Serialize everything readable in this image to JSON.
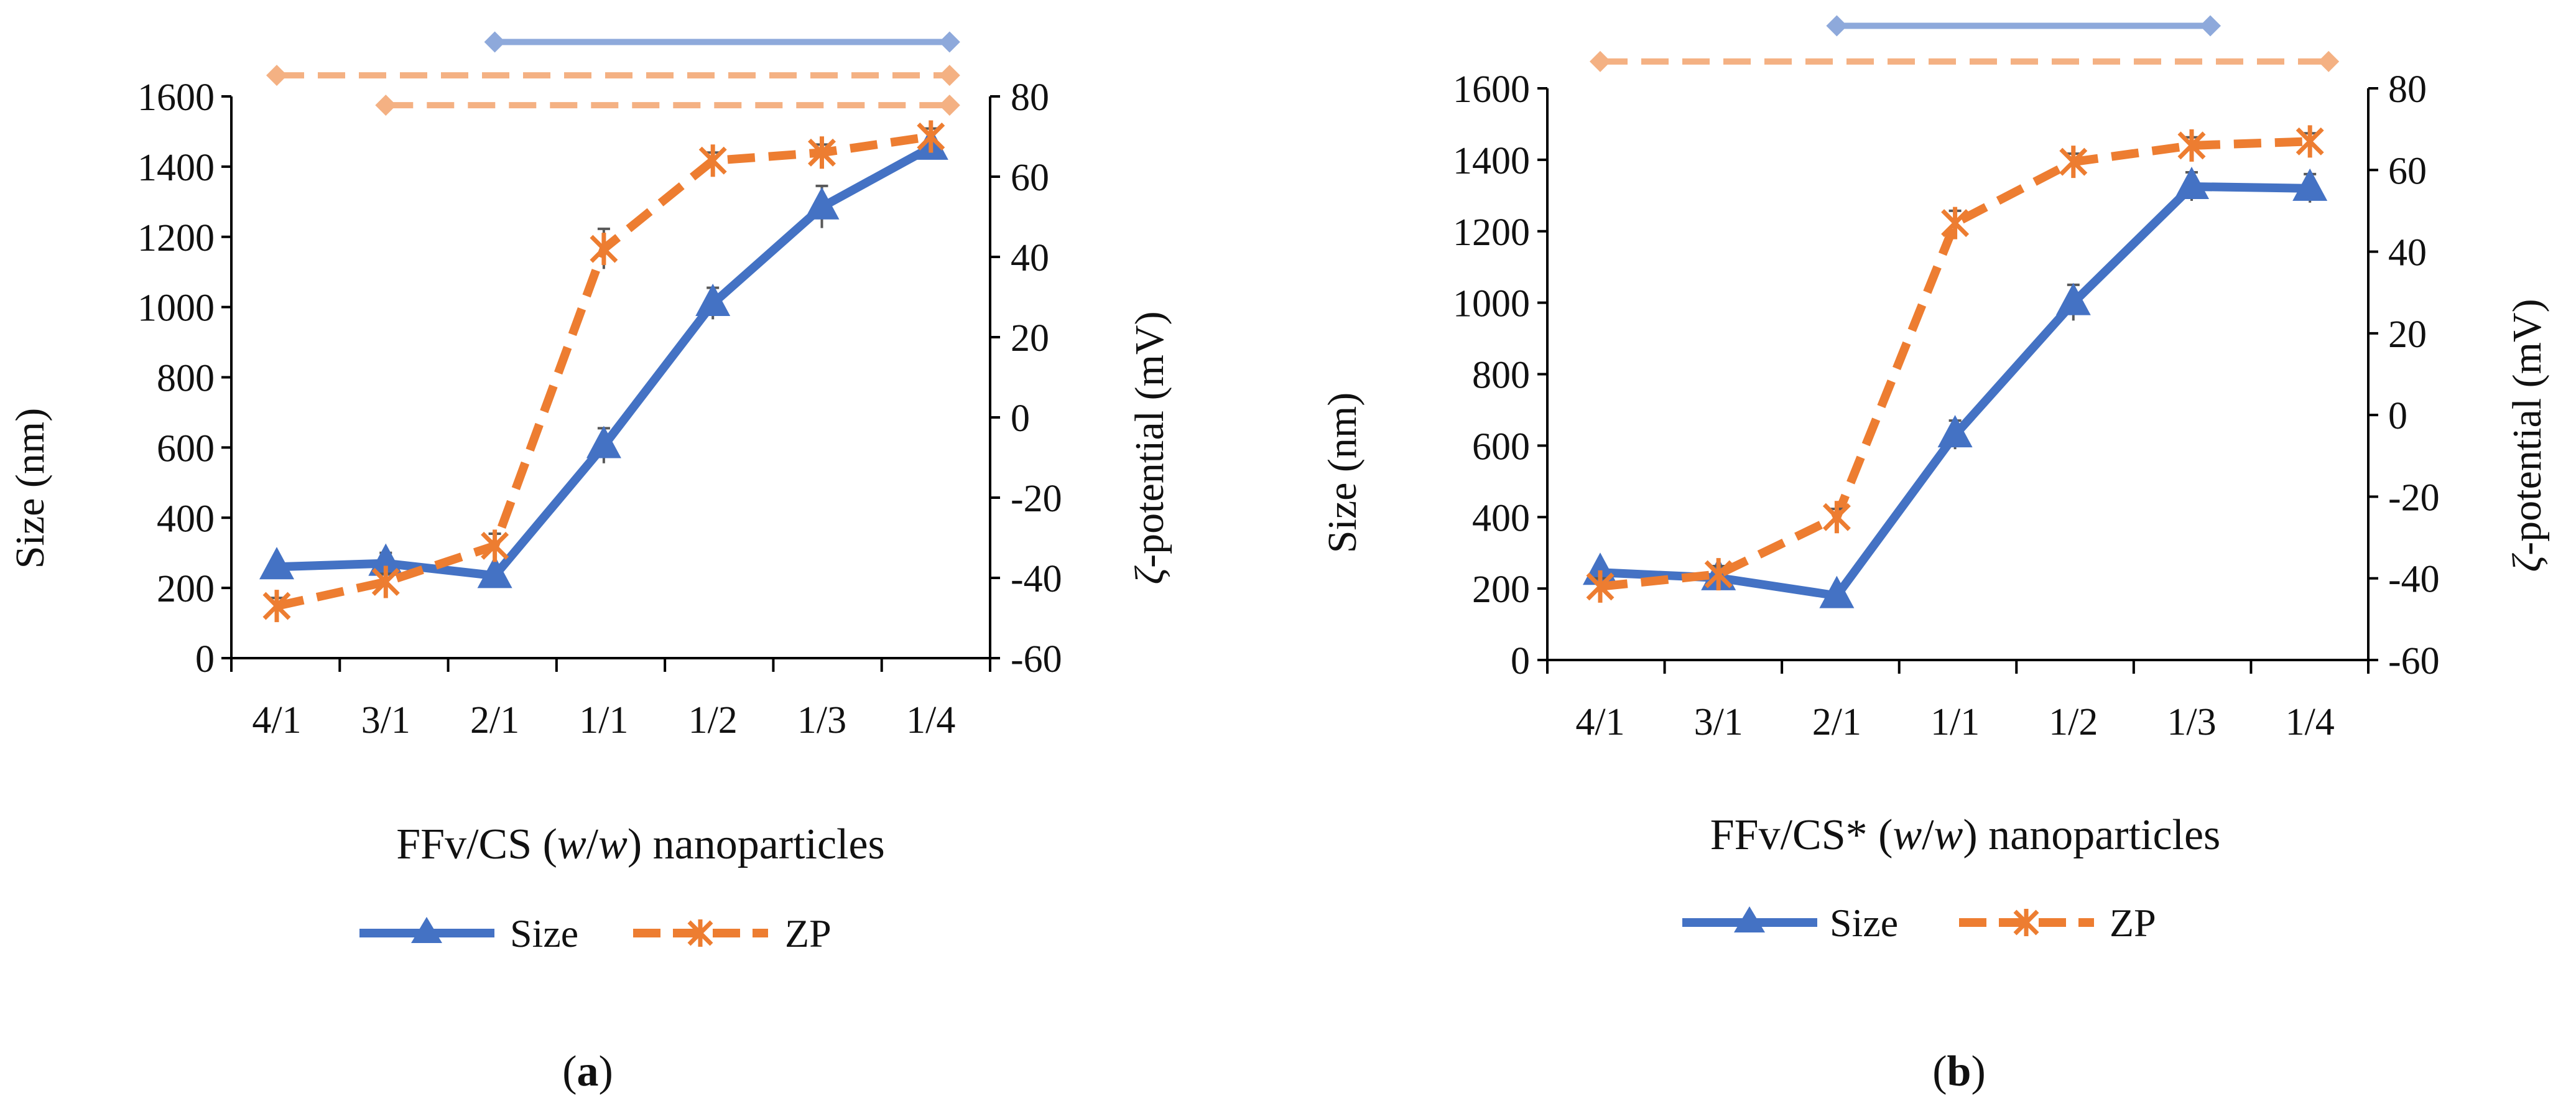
{
  "colors": {
    "size": "#4472C4",
    "zp": "#ED7D31",
    "size_bracket": "#8EA9DB",
    "zp_bracket": "#F4B183",
    "axis": "#000000",
    "error_bar": "#595959"
  },
  "chart_data": [
    {
      "panel_label": "a",
      "type": "line",
      "categories": [
        "4/1",
        "3/1",
        "2/1",
        "1/1",
        "1/2",
        "1/3",
        "1/4"
      ],
      "xlabel": "FFv/CS (w/w) nanoparticles",
      "xlabel_parts": {
        "pre": "FFv/CS (",
        "var1": "w",
        "slash": "/",
        "var2": "w",
        "post": ") nanoparticles"
      },
      "ylabel_left": "Size (nm)",
      "ylabel_right": "ζ-potential (mV)",
      "ylabel_right_parts": {
        "zeta": "ζ",
        "rest": "-potential (mV)"
      },
      "y_left": {
        "min": 0,
        "max": 1600,
        "step": 200
      },
      "y_right": {
        "min": -60,
        "max": 80,
        "step": 20
      },
      "series": [
        {
          "name": "Size",
          "axis": "left",
          "marker": "triangle",
          "values": [
            260,
            270,
            235,
            605,
            1010,
            1285,
            1455
          ],
          "errors": [
            15,
            30,
            15,
            50,
            45,
            60,
            20
          ]
        },
        {
          "name": "ZP",
          "axis": "right",
          "marker": "star",
          "values": [
            -47,
            -41,
            -32,
            42,
            64,
            66,
            70
          ],
          "errors": [
            2,
            2,
            3,
            5,
            2,
            2,
            2
          ]
        }
      ],
      "brackets": [
        {
          "series": "Size",
          "from": "2/1",
          "to": "1/4",
          "level_left": 1755
        },
        {
          "series": "ZP",
          "from": "4/1",
          "to": "1/4",
          "level_left": 1660
        },
        {
          "series": "ZP",
          "from": "3/1",
          "to": "1/4",
          "level_left": 1575
        }
      ],
      "legend": [
        "Size",
        "ZP"
      ],
      "legend_position": "bottom"
    },
    {
      "panel_label": "b",
      "type": "line",
      "categories": [
        "4/1",
        "3/1",
        "2/1",
        "1/1",
        "1/2",
        "1/3",
        "1/4"
      ],
      "xlabel": "FFv/CS* (w/w) nanoparticles",
      "xlabel_parts": {
        "pre": "FFv/CS* (",
        "var1": "w",
        "slash": "/",
        "var2": "w",
        "post": ") nanoparticles"
      },
      "ylabel_left": "Size (nm)",
      "ylabel_right": "ζ-potential (mV)",
      "ylabel_right_parts": {
        "zeta": "ζ",
        "rest": "-potential (mV)"
      },
      "y_left": {
        "min": 0,
        "max": 1600,
        "step": 200
      },
      "y_right": {
        "min": -60,
        "max": 80,
        "step": 20
      },
      "series": [
        {
          "name": "Size",
          "axis": "left",
          "marker": "triangle",
          "values": [
            245,
            230,
            180,
            630,
            1000,
            1325,
            1320
          ],
          "errors": [
            15,
            15,
            10,
            40,
            50,
            40,
            40
          ]
        },
        {
          "name": "ZP",
          "axis": "right",
          "marker": "star",
          "values": [
            -42,
            -39,
            -25,
            47,
            62,
            66,
            67
          ],
          "errors": [
            2,
            2,
            2,
            3,
            2,
            2,
            2
          ]
        }
      ],
      "brackets": [
        {
          "series": "Size",
          "from": "2/1",
          "to": "1/3",
          "level_left": 1775
        },
        {
          "series": "ZP",
          "from": "4/1",
          "to": "1/4",
          "level_left": 1675
        }
      ],
      "legend": [
        "Size",
        "ZP"
      ],
      "legend_position": "bottom"
    }
  ]
}
